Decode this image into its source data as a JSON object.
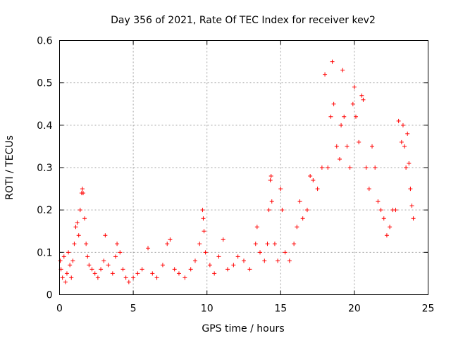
{
  "chart_data": {
    "type": "scatter",
    "title": "Day 356 of 2021, Rate Of TEC Index for receiver kev2",
    "xlabel": "GPS time / hours",
    "ylabel": "ROTI / TECUs",
    "xlim": [
      0,
      25
    ],
    "ylim": [
      0,
      0.6
    ],
    "x_ticks": [
      0,
      5,
      10,
      15,
      20,
      25
    ],
    "y_ticks": [
      0,
      0.1,
      0.2,
      0.3,
      0.4,
      0.5,
      0.6
    ],
    "x_tick_labels": [
      "0",
      "5",
      "10",
      "15",
      "20",
      "25"
    ],
    "y_tick_labels": [
      "0",
      "0.1",
      "0.2",
      "0.3",
      "0.4",
      "0.5",
      "0.6"
    ],
    "grid": true,
    "marker": "+",
    "color": "#ff0000",
    "series": [
      {
        "points": [
          [
            0.05,
            0.08
          ],
          [
            0.1,
            0.06
          ],
          [
            0.2,
            0.04
          ],
          [
            0.3,
            0.09
          ],
          [
            0.4,
            0.03
          ],
          [
            0.5,
            0.05
          ],
          [
            0.6,
            0.1
          ],
          [
            0.7,
            0.07
          ],
          [
            0.8,
            0.04
          ],
          [
            0.9,
            0.08
          ],
          [
            1.0,
            0.12
          ],
          [
            1.1,
            0.16
          ],
          [
            1.2,
            0.17
          ],
          [
            1.3,
            0.14
          ],
          [
            1.4,
            0.2
          ],
          [
            1.5,
            0.24
          ],
          [
            1.55,
            0.25
          ],
          [
            1.6,
            0.24
          ],
          [
            1.7,
            0.18
          ],
          [
            1.8,
            0.12
          ],
          [
            1.9,
            0.09
          ],
          [
            2.0,
            0.07
          ],
          [
            2.2,
            0.06
          ],
          [
            2.4,
            0.05
          ],
          [
            2.6,
            0.04
          ],
          [
            2.8,
            0.06
          ],
          [
            3.0,
            0.08
          ],
          [
            3.1,
            0.14
          ],
          [
            3.3,
            0.07
          ],
          [
            3.6,
            0.05
          ],
          [
            3.8,
            0.09
          ],
          [
            3.9,
            0.12
          ],
          [
            4.1,
            0.1
          ],
          [
            4.3,
            0.06
          ],
          [
            4.5,
            0.04
          ],
          [
            4.7,
            0.03
          ],
          [
            5.0,
            0.04
          ],
          [
            5.3,
            0.05
          ],
          [
            5.6,
            0.06
          ],
          [
            6.0,
            0.11
          ],
          [
            6.3,
            0.05
          ],
          [
            6.6,
            0.04
          ],
          [
            7.0,
            0.07
          ],
          [
            7.3,
            0.12
          ],
          [
            7.5,
            0.13
          ],
          [
            7.8,
            0.06
          ],
          [
            8.1,
            0.05
          ],
          [
            8.5,
            0.04
          ],
          [
            8.9,
            0.06
          ],
          [
            9.2,
            0.08
          ],
          [
            9.5,
            0.12
          ],
          [
            9.7,
            0.2
          ],
          [
            9.75,
            0.18
          ],
          [
            9.8,
            0.15
          ],
          [
            9.9,
            0.1
          ],
          [
            10.2,
            0.07
          ],
          [
            10.5,
            0.05
          ],
          [
            10.8,
            0.09
          ],
          [
            11.1,
            0.13
          ],
          [
            11.4,
            0.06
          ],
          [
            11.8,
            0.07
          ],
          [
            12.1,
            0.09
          ],
          [
            12.5,
            0.08
          ],
          [
            12.9,
            0.06
          ],
          [
            13.3,
            0.12
          ],
          [
            13.4,
            0.16
          ],
          [
            13.6,
            0.1
          ],
          [
            13.9,
            0.08
          ],
          [
            14.1,
            0.12
          ],
          [
            14.2,
            0.2
          ],
          [
            14.3,
            0.27
          ],
          [
            14.35,
            0.28
          ],
          [
            14.4,
            0.22
          ],
          [
            14.6,
            0.12
          ],
          [
            14.8,
            0.08
          ],
          [
            15.0,
            0.25
          ],
          [
            15.1,
            0.2
          ],
          [
            15.3,
            0.1
          ],
          [
            15.6,
            0.08
          ],
          [
            15.9,
            0.12
          ],
          [
            16.1,
            0.16
          ],
          [
            16.3,
            0.22
          ],
          [
            16.5,
            0.18
          ],
          [
            16.8,
            0.2
          ],
          [
            17.0,
            0.28
          ],
          [
            17.2,
            0.27
          ],
          [
            17.5,
            0.25
          ],
          [
            17.8,
            0.3
          ],
          [
            18.0,
            0.52
          ],
          [
            18.2,
            0.3
          ],
          [
            18.4,
            0.42
          ],
          [
            18.5,
            0.55
          ],
          [
            18.6,
            0.45
          ],
          [
            18.8,
            0.35
          ],
          [
            19.0,
            0.32
          ],
          [
            19.1,
            0.4
          ],
          [
            19.2,
            0.53
          ],
          [
            19.3,
            0.42
          ],
          [
            19.5,
            0.35
          ],
          [
            19.7,
            0.3
          ],
          [
            19.9,
            0.45
          ],
          [
            20.0,
            0.49
          ],
          [
            20.1,
            0.42
          ],
          [
            20.3,
            0.36
          ],
          [
            20.5,
            0.47
          ],
          [
            20.6,
            0.46
          ],
          [
            20.8,
            0.3
          ],
          [
            21.0,
            0.25
          ],
          [
            21.2,
            0.35
          ],
          [
            21.4,
            0.3
          ],
          [
            21.6,
            0.22
          ],
          [
            21.8,
            0.2
          ],
          [
            22.0,
            0.18
          ],
          [
            22.2,
            0.14
          ],
          [
            22.4,
            0.16
          ],
          [
            22.6,
            0.2
          ],
          [
            22.8,
            0.2
          ],
          [
            23.0,
            0.41
          ],
          [
            23.2,
            0.36
          ],
          [
            23.3,
            0.4
          ],
          [
            23.4,
            0.35
          ],
          [
            23.5,
            0.3
          ],
          [
            23.6,
            0.38
          ],
          [
            23.7,
            0.31
          ],
          [
            23.8,
            0.25
          ],
          [
            23.9,
            0.21
          ],
          [
            24.0,
            0.18
          ]
        ]
      }
    ]
  }
}
